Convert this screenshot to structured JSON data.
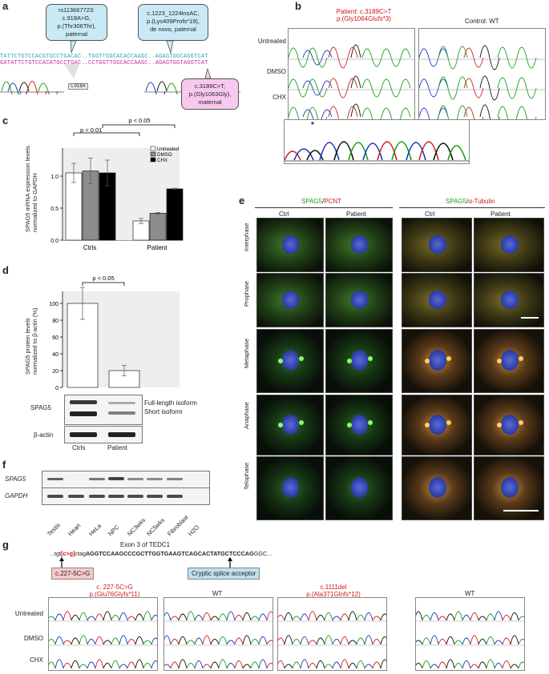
{
  "panels": {
    "a": "a",
    "b": "b",
    "c": "c",
    "d": "d",
    "e": "e",
    "f": "f",
    "g": "g"
  },
  "panel_a": {
    "callout1": [
      "rs113667723:",
      "c.918A>G,",
      "p.(Thr306Thr),",
      "paternal"
    ],
    "callout2": [
      "c.1223_1224insAC,",
      "p.(Lys409Profs*19),",
      "de novo, paternal"
    ],
    "callout3": [
      "c.3189C>T,",
      "p.(Gly1063Gly),",
      "maternal"
    ],
    "seq_top": "TATTCTGTCCACGTGCCTGACAC..TGGTTGGCACACCAAGC..AGAGTGGCAGGTCAT",
    "seq_bottom": "GATATTCTGTCCACATGCCTGAC..CCTGGTTGGCACCAAGC..AGAGTGGTAGGTCAT",
    "zoom_label": "c.918A"
  },
  "panel_b": {
    "patient_title": [
      "Patient: c.3189C>T",
      "p.(Gly1064Glufs*3)"
    ],
    "control_title": "Control: WT",
    "rows": [
      "Untreated",
      "DMSO",
      "CHX"
    ],
    "asterisk": "*"
  },
  "panel_c": {
    "ylabel": [
      "SPAG5 mRNA expression levels",
      "normalized to GAPDH"
    ],
    "pvalues": [
      "p < 0.05",
      "p < 0.01"
    ],
    "legend": [
      "Untreated",
      "DMSO",
      "CHX"
    ],
    "yticks": [
      "0.0",
      "0.5",
      "1.0"
    ],
    "categories": [
      "Ctrls",
      "Patient"
    ]
  },
  "panel_d": {
    "ylabel": [
      "SPAG5 protein levels",
      "normalized to β-actin (%)"
    ],
    "pvalue": "p < 0.05",
    "yticks": [
      "0",
      "20",
      "40",
      "60",
      "80",
      "100"
    ],
    "categories": [
      "Ctrls",
      "Patient"
    ],
    "blot_spag5": "SPAG5",
    "blot_actin": "β-actin",
    "isoform_full": "Full-length isoform",
    "isoform_short": "Short isoform"
  },
  "panel_e": {
    "header_left": [
      "SPAG5",
      "/",
      "PCNT"
    ],
    "header_right": [
      "SPAG5",
      "/",
      "α-Tubulin"
    ],
    "cols": [
      "Ctrl",
      "Patient",
      "Ctrl",
      "Patient"
    ],
    "rows": [
      "Interphase",
      "Prophase",
      "Metaphase",
      "Anaphase",
      "Telophase"
    ]
  },
  "panel_f": {
    "row1": "SPAG5",
    "row2": "GAPDH",
    "lanes": [
      "Testis",
      "Heart",
      "HeLa",
      "NPC",
      "NC3wks",
      "NC5wks",
      "Fibroblast",
      "H2O"
    ]
  },
  "panel_g": {
    "exon_title": "Exon 3 of TEDC1",
    "seq_prefix": "...tgt",
    "seq_mut": "[c>g]",
    "seq_mid": "ctag",
    "seq_bold": "AGGTCCAAGCCCGCTTGGTGAAGTCAGCACTATGCTCCCAG",
    "seq_end": "GGC...",
    "box1": "c.227-5C>G",
    "box2": "Cryptic splice acceptor",
    "title1": [
      "c. 227-5C>G",
      "p.(Glu76Glyfs*11)"
    ],
    "title2": "WT",
    "title3": [
      "c.1111del",
      "p.(Ala371Glnfs*12)"
    ],
    "title4": "WT",
    "rows": [
      "Untreated",
      "DMSO",
      "CHX"
    ]
  },
  "chart_data": [
    {
      "type": "bar",
      "title": "",
      "ylabel": "SPAG5 mRNA expression levels normalized to GAPDH",
      "categories": [
        "Ctrls",
        "Patient"
      ],
      "series": [
        {
          "name": "Untreated",
          "values": [
            1.05,
            0.3
          ],
          "errors": [
            0.15,
            0.04
          ]
        },
        {
          "name": "DMSO",
          "values": [
            1.08,
            0.42
          ],
          "errors": [
            0.2,
            0.01
          ]
        },
        {
          "name": "CHX",
          "values": [
            1.05,
            0.8
          ],
          "errors": [
            0.2,
            0.01
          ]
        }
      ],
      "ylim": [
        0,
        1.5
      ],
      "legend": "top-right"
    },
    {
      "type": "bar",
      "title": "",
      "ylabel": "SPAG5 protein levels normalized to β-actin (%)",
      "categories": [
        "Ctrls",
        "Patient"
      ],
      "values": [
        100,
        20
      ],
      "errors": [
        19,
        6
      ],
      "ylim": [
        0,
        120
      ]
    }
  ],
  "colors": {
    "callout_blue": "#c9eaf5",
    "callout_pink": "#f7c9ef",
    "accent_red": "#d01818",
    "accent_green": "#1ea01e",
    "bar_untreated": "#ffffff",
    "bar_dmso": "#8c8c8c",
    "bar_chx": "#000000"
  }
}
